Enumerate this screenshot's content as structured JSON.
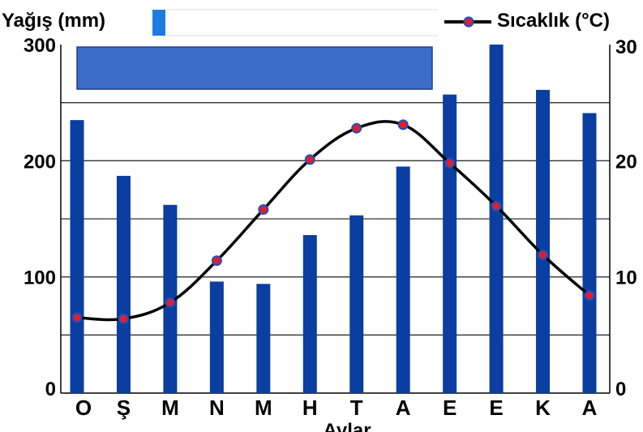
{
  "chart_data": {
    "type": "bar",
    "left_axis_title": "Yağış (mm)",
    "right_axis_title": "Sıcaklık (°C)",
    "xlabel": "Aylar",
    "categories": [
      "O",
      "Ş",
      "M",
      "N",
      "M",
      "H",
      "T",
      "A",
      "E",
      "E",
      "K",
      "A"
    ],
    "left_ticks": [
      "0",
      "100",
      "200",
      "300"
    ],
    "right_ticks": [
      "0",
      "10",
      "20",
      "30"
    ],
    "ylim_left": [
      0,
      300
    ],
    "ylim_right": [
      0,
      30
    ],
    "gridline_values_left": [
      50,
      100,
      150,
      200,
      250
    ],
    "series": [
      {
        "name": "Yağış (mm)",
        "type": "bar",
        "axis": "left",
        "values": [
          235,
          187,
          162,
          96,
          94,
          136,
          153,
          195,
          257,
          300,
          261,
          241
        ]
      },
      {
        "name": "Sıcaklık (°C)",
        "type": "line",
        "axis": "right",
        "values": [
          6.5,
          6.4,
          7.8,
          11.4,
          15.8,
          20.1,
          22.8,
          23.1,
          19.8,
          16.1,
          11.9,
          8.4
        ]
      }
    ],
    "colors": {
      "bar": "#0a3ea0",
      "line": "#000000",
      "marker_fill": "#e01e2a",
      "marker_stroke": "#1f4fc0",
      "legend_patch": "#3d6bc8",
      "legend_patch_border": "#1f3f8a",
      "grid": "#333333"
    },
    "legend_placement": "top",
    "grid": true
  }
}
